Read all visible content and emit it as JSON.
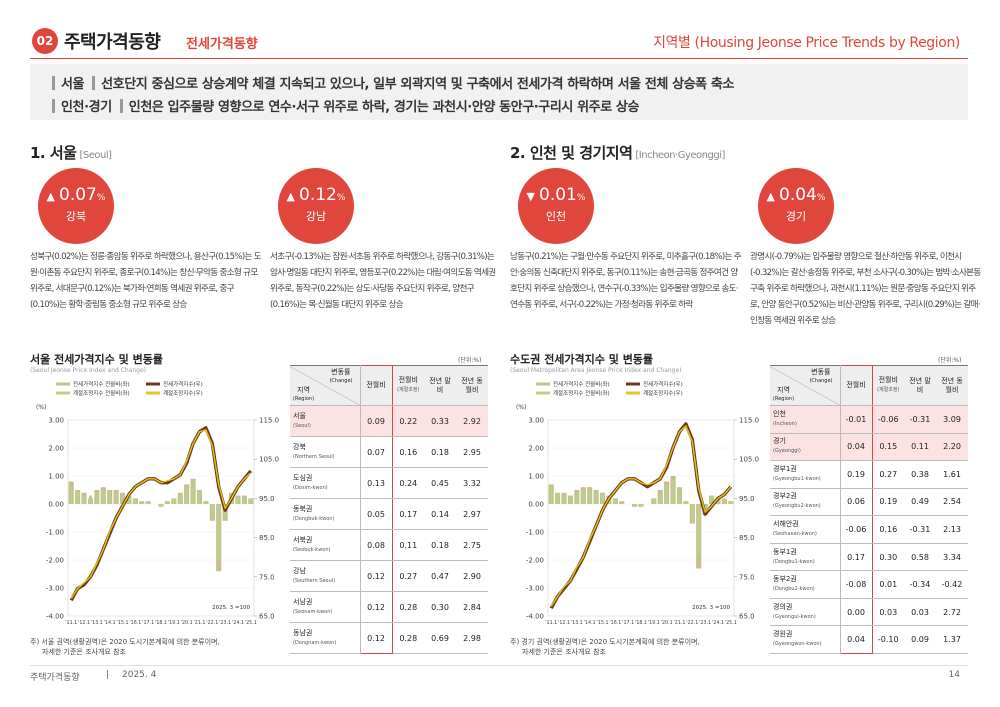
{
  "header": {
    "num": "02",
    "title": "주택가격동향",
    "subtitle": "전세가격동향",
    "right": "지역별 (Housing Jeonse Price Trends by Region)"
  },
  "summary": [
    {
      "region": "서울",
      "text": "선호단지 중심으로 상승계약 체결 지속되고 있으나, 일부 외곽지역 및 구축에서 전세가격 하락하며 서울 전체 상승폭 축소"
    },
    {
      "region": "인천·경기",
      "text": "인천은 입주물량 영향으로 연수·서구 위주로 하락, 경기는 과천시·안양 동안구·구리시 위주로 상승"
    }
  ],
  "sections": [
    {
      "title": "1. 서울",
      "title_en": "[Seoul]",
      "cards": [
        {
          "arrow": "▲",
          "value": "0.07",
          "unit": "%",
          "label": "강북",
          "text": "성북구(0.02%)는 정릉·종암동 위주로 하락했으나, 용산구(0.15%)는 도원·이촌동 주요단지 위주로, 종로구(0.14%)는 창신·무악동 중소형 규모 위주로, 서대문구(0.12%)는 북가좌·연희동 역세권 위주로, 중구(0.10%)는 황학·중림동 중소형 규모 위주로 상승"
        },
        {
          "arrow": "▲",
          "value": "0.12",
          "unit": "%",
          "label": "강남",
          "text": "서초구(-0.13%)는 잠원·서초동 위주로 하락했으나, 강동구(0.31%)는 암사·명일동 대단지 위주로, 영등포구(0.22%)는 대림·여의도동 역세권 위주로, 동작구(0.22%)는 상도·사당동 주요단지 위주로, 양천구(0.16%)는 목·신월동 대단지 위주로 상승"
        }
      ],
      "chart_title": "서울 전세가격지수 및 변동률",
      "chart_subtitle": "(Seoul Jeonse Price Index and Change)",
      "unit": "(단위:%)",
      "chart": {
        "type": "bar_line",
        "y_label": "(%)",
        "base_note": "2025. 3 =100",
        "categories": [
          "'11.1",
          null,
          "'12.1",
          null,
          "'13.1",
          null,
          "'14.1",
          null,
          "'15.1",
          null,
          "'16.1",
          null,
          "'17.1",
          null,
          "'18.1",
          null,
          "'19.1",
          null,
          "'20.1",
          null,
          "'21.1",
          null,
          "'22.1",
          null,
          "'23.1",
          null,
          "'24.1",
          null,
          "'25.1"
        ],
        "ylim": [
          -4,
          3
        ],
        "yticks": [
          {
            "value": 3,
            "label": "3.00"
          },
          {
            "value": 2,
            "label": "2.00"
          },
          {
            "value": 1,
            "label": "1.00"
          },
          {
            "value": 0,
            "label": "0.00"
          },
          {
            "value": -1,
            "label": "-1.00"
          },
          {
            "value": -2,
            "label": "-2.00"
          },
          {
            "value": -3,
            "label": "-3.00"
          },
          {
            "value": -4,
            "label": "-4.00"
          }
        ],
        "y2lim": [
          65,
          115
        ],
        "y2ticks": [
          {
            "value": 115,
            "label": "115.0"
          },
          {
            "value": 105,
            "label": "105.0"
          },
          {
            "value": 95,
            "label": "95.0"
          },
          {
            "value": 85,
            "label": "85.0"
          },
          {
            "value": 75,
            "label": "75.0"
          },
          {
            "value": 65,
            "label": "65.0"
          }
        ],
        "series": [
          {
            "name": "전세가격지수 전월비(좌)",
            "color": "#c9bc8e",
            "type": "bar",
            "values": [
              0.8,
              0.5,
              0.4,
              0.2,
              0.5,
              0.6,
              0.5,
              0.5,
              0.4,
              0.3,
              0.2,
              0.1,
              0.1,
              0.0,
              -0.1,
              0.1,
              0.2,
              0.4,
              0.7,
              0.9,
              0.5,
              0.1,
              -0.6,
              -2.4,
              -0.6,
              0.4,
              0.3,
              0.3,
              0.2
            ]
          },
          {
            "name": "계절조정지수 전월비(좌)",
            "color": "#b9cf8e",
            "type": "bar",
            "values": [
              0.6,
              0.4,
              0.3,
              0.3,
              0.4,
              0.5,
              0.5,
              0.4,
              0.3,
              0.3,
              0.2,
              0.1,
              0.1,
              0.0,
              -0.1,
              0.0,
              0.2,
              0.3,
              0.6,
              0.8,
              0.5,
              0.1,
              -0.5,
              -2.0,
              -0.5,
              0.4,
              0.3,
              0.2,
              0.2
            ]
          },
          {
            "name": "전세가격지수(우)",
            "color": "#6b3a17",
            "type": "line",
            "axis": "y2",
            "values": [
              69,
              72,
              73,
              75,
              78,
              82,
              86,
              90,
              93,
              96,
              98,
              99,
              100,
              100,
              99,
              99,
              100,
              101,
              104,
              109,
              112,
              113,
              109,
              98,
              92,
              95,
              98,
              100,
              102
            ]
          },
          {
            "name": "계절조정지수(우)",
            "color": "#e3c51b",
            "type": "line",
            "axis": "y2",
            "values": [
              69.5,
              72,
              73.5,
              75,
              78.5,
              82,
              86.5,
              90,
              93,
              96,
              98,
              99,
              100,
              100,
              99,
              99.5,
              100,
              101,
              104.5,
              109,
              112,
              112.5,
              108.5,
              98.5,
              92.5,
              95,
              98,
              100,
              101.5
            ]
          }
        ]
      },
      "table": {
        "header": {
          "change": "변동률",
          "change_en": "(Change)",
          "region": "지역",
          "region_en": "(Region)",
          "cols": [
            {
              "label": "전월비"
            },
            {
              "label": "전월비",
              "sub": "(계절조정)"
            },
            {
              "label": "전년 말비"
            },
            {
              "label": "전년 동월비"
            }
          ]
        },
        "rows": [
          {
            "name": "서울",
            "name_en": "(Seoul)",
            "values": [
              "0.09",
              "0.22",
              "0.33",
              "2.92"
            ]
          },
          {
            "name": "강북",
            "name_en": "(Northern Seoul)",
            "values": [
              "0.07",
              "0.16",
              "0.18",
              "2.95"
            ]
          },
          {
            "name": "도심권",
            "name_en": "(Dosim-kwon)",
            "values": [
              "0.13",
              "0.24",
              "0.45",
              "3.32"
            ]
          },
          {
            "name": "동북권",
            "name_en": "(Dongbuk-kwon)",
            "values": [
              "0.05",
              "0.17",
              "0.14",
              "2.97"
            ]
          },
          {
            "name": "서북권",
            "name_en": "(Seobuk-kwon)",
            "values": [
              "0.08",
              "0.11",
              "0.18",
              "2.75"
            ]
          },
          {
            "name": "강남",
            "name_en": "(Southern Seoul)",
            "values": [
              "0.12",
              "0.27",
              "0.47",
              "2.90"
            ]
          },
          {
            "name": "서남권",
            "name_en": "(Seonam-kwon)",
            "values": [
              "0.12",
              "0.28",
              "0.30",
              "2.84"
            ]
          },
          {
            "name": "동남권",
            "name_en": "(Dongnam-kwon)",
            "values": [
              "0.12",
              "0.28",
              "0.69",
              "2.98"
            ]
          }
        ]
      },
      "note": [
        "주) 서울 권역(생활권역)은 2020 도시기본계획에 의한 분류이며,",
        "자세한 기준은 조사개요 참조"
      ]
    },
    {
      "title": "2. 인천 및 경기지역",
      "title_en": "[Incheon·Gyeonggi]",
      "cards": [
        {
          "arrow": "▼",
          "value": "0.01",
          "unit": "%",
          "label": "인천",
          "text": "남동구(0.21%)는 구월·만수동 주요단지 위주로, 미추홀구(0.18%)는 주안·숭의동 신축대단지 위주로, 동구(0.11%)는 송현·금곡동 정주여건 양호단지 위주로 상승했으나, 연수구(-0.33%)는 입주물량 영향으로 송도·연수동 위주로, 서구(-0.22%)는 가정·청라동 위주로 하락"
        },
        {
          "arrow": "▲",
          "value": "0.04",
          "unit": "%",
          "label": "경기",
          "text": "광명시(-0.79%)는 입주물량 영향으로 철산·하안동 위주로, 이천시(-0.32%)는 갈산·송정동 위주로, 부천 소사구(-0.30%)는 범박·소사본동 구축 위주로 하락했으나, 과천시(1.11%)는 원문·중앙동 주요단지 위주로, 안양 동안구(0.52%)는 비산·관양동 위주로, 구리시(0.29%)는 갈매·인창동 역세권 위주로 상승"
        }
      ],
      "chart_title": "수도권 전세가격지수 및 변동률",
      "chart_subtitle": "(Seoul Metropolitan Area Jeonse Price Index and Change)",
      "unit": "(단위:%)",
      "chart": {
        "type": "bar_line",
        "y_label": "(%)",
        "base_note": "2025. 3 =100",
        "categories": [
          "'11.1",
          null,
          "'12.1",
          null,
          "'13.1",
          null,
          "'14.1",
          null,
          "'15.1",
          null,
          "'16.1",
          null,
          "'17.1",
          null,
          "'18.1",
          null,
          "'19.1",
          null,
          "'20.1",
          null,
          "'21.1",
          null,
          "'22.1",
          null,
          "'23.1",
          null,
          "'24.1",
          null,
          "'25.1"
        ],
        "ylim": [
          -4,
          3
        ],
        "yticks": [
          {
            "value": 3,
            "label": "3.00"
          },
          {
            "value": 2,
            "label": "2.00"
          },
          {
            "value": 1,
            "label": "1.00"
          },
          {
            "value": 0,
            "label": "0.00"
          },
          {
            "value": -1,
            "label": "-1.00"
          },
          {
            "value": -2,
            "label": "-2.00"
          },
          {
            "value": -3,
            "label": "-3.00"
          },
          {
            "value": -4,
            "label": "-4.00"
          }
        ],
        "y2lim": [
          65,
          115
        ],
        "y2ticks": [
          {
            "value": 115,
            "label": "115.0"
          },
          {
            "value": 105,
            "label": "105.0"
          },
          {
            "value": 95,
            "label": "95.0"
          },
          {
            "value": 85,
            "label": "85.0"
          },
          {
            "value": 75,
            "label": "75.0"
          },
          {
            "value": 65,
            "label": "65.0"
          }
        ],
        "series": [
          {
            "name": "전세가격지수 전월비(좌)",
            "color": "#c9bc8e",
            "type": "bar",
            "values": [
              0.7,
              0.4,
              0.4,
              0.3,
              0.5,
              0.6,
              0.6,
              0.5,
              0.4,
              0.3,
              0.2,
              0.1,
              0.0,
              -0.1,
              -0.1,
              0.0,
              0.2,
              0.5,
              0.8,
              1.0,
              0.6,
              0.1,
              -0.7,
              -2.3,
              -0.4,
              0.3,
              0.2,
              0.2,
              0.1
            ]
          },
          {
            "name": "계절조정지수 전월비(좌)",
            "color": "#b9cf8e",
            "type": "bar",
            "values": [
              0.6,
              0.4,
              0.3,
              0.3,
              0.4,
              0.5,
              0.5,
              0.4,
              0.4,
              0.3,
              0.2,
              0.1,
              0.0,
              -0.1,
              -0.1,
              0.0,
              0.2,
              0.4,
              0.7,
              0.9,
              0.5,
              0.1,
              -0.6,
              -1.9,
              -0.4,
              0.3,
              0.2,
              0.2,
              0.1
            ]
          },
          {
            "name": "전세가격지수(우)",
            "color": "#6b3a17",
            "type": "line",
            "axis": "y2",
            "values": [
              67,
              70,
              72,
              74,
              77,
              80,
              84,
              88,
              92,
              95,
              97,
              99,
              100,
              100,
              99,
              98,
              99,
              100,
              103,
              108,
              112,
              114,
              110,
              97,
              91,
              93,
              95,
              96,
              98
            ]
          },
          {
            "name": "계절조정지수(우)",
            "color": "#e3c51b",
            "type": "line",
            "axis": "y2",
            "values": [
              67.5,
              70,
              72.5,
              74,
              77.5,
              80,
              84.5,
              88,
              92,
              95,
              97,
              99,
              100,
              100,
              99,
              98.5,
              99,
              100,
              103.5,
              108,
              112,
              113.5,
              109.5,
              97.5,
              91.5,
              93,
              95,
              96,
              98
            ]
          }
        ]
      },
      "table": {
        "header": {
          "change": "변동률",
          "change_en": "(Change)",
          "region": "지역",
          "region_en": "(Region)",
          "cols": [
            {
              "label": "전월비"
            },
            {
              "label": "전월비",
              "sub": "(계절조정)"
            },
            {
              "label": "전년 말비"
            },
            {
              "label": "전년 동월비"
            }
          ]
        },
        "rows": [
          {
            "name": "인천",
            "name_en": "(Incheon)",
            "values": [
              "-0.01",
              "-0.06",
              "-0.31",
              "3.09"
            ]
          },
          {
            "name": "경기",
            "name_en": "(Gyeonggi)",
            "values": [
              "0.04",
              "0.15",
              "0.11",
              "2.20"
            ]
          },
          {
            "name": "경부1권",
            "name_en": "(Gyeongbu1-kwon)",
            "values": [
              "0.19",
              "0.27",
              "0.38",
              "1.61"
            ]
          },
          {
            "name": "경부2권",
            "name_en": "(Gyeongbu2-kwon)",
            "values": [
              "0.06",
              "0.19",
              "0.49",
              "2.54"
            ]
          },
          {
            "name": "서해안권",
            "name_en": "(Seohaean-kwon)",
            "values": [
              "-0.06",
              "0.16",
              "-0.31",
              "2.13"
            ]
          },
          {
            "name": "동부1권",
            "name_en": "(Dongbu1-kwon)",
            "values": [
              "0.17",
              "0.30",
              "0.58",
              "3.34"
            ]
          },
          {
            "name": "동부2권",
            "name_en": "(Dongbu2-kwon)",
            "values": [
              "-0.08",
              "0.01",
              "-0.34",
              "-0.42"
            ]
          },
          {
            "name": "경의권",
            "name_en": "(Gyeongui-kwon)",
            "values": [
              "0.00",
              "0.03",
              "0.03",
              "2.72"
            ]
          },
          {
            "name": "경원권",
            "name_en": "(Gyeongwon-kwon)",
            "values": [
              "0.04",
              "-0.10",
              "0.09",
              "1.37"
            ]
          }
        ]
      },
      "note": [
        "주) 경기 권역(생활권역)은 2020 도시기본계획에 의한 분류이며,",
        "자세한 기준은 조사개요 참조"
      ]
    }
  ],
  "footer": {
    "left": "주택가격동향",
    "sep": "|",
    "date": "2025. 4",
    "page": "14"
  }
}
